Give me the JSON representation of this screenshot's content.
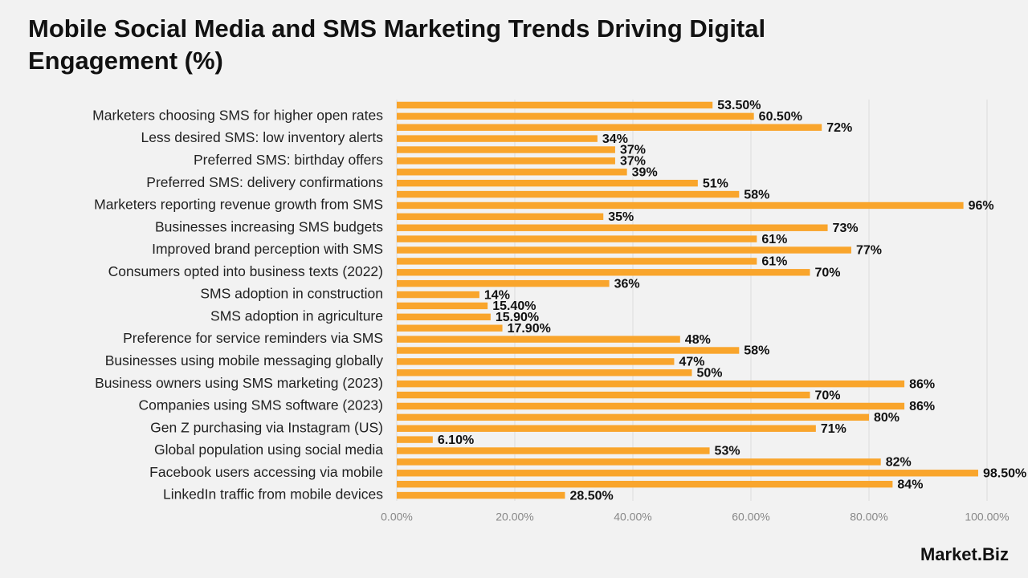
{
  "chart_data": {
    "type": "bar",
    "orientation": "horizontal",
    "title": "Mobile Social Media and SMS Marketing Trends Driving Digital Engagement (%)",
    "categories": [
      null,
      "Marketers choosing SMS for higher open rates",
      null,
      "Less desired SMS: low inventory alerts",
      null,
      "Preferred SMS: birthday offers",
      null,
      "Preferred SMS: delivery confirmations",
      null,
      "Marketers reporting revenue growth from SMS",
      null,
      "Businesses increasing SMS budgets",
      null,
      "Improved brand perception with SMS",
      null,
      "Consumers opted into business texts (2022)",
      null,
      "SMS adoption in construction",
      null,
      "SMS adoption in agriculture",
      null,
      "Preference for service reminders via SMS",
      null,
      "Businesses using mobile messaging globally",
      null,
      "Business owners using SMS marketing (2023)",
      null,
      "Companies using SMS software (2023)",
      null,
      "Gen Z purchasing via Instagram (US)",
      null,
      "Global population using social media",
      null,
      "Facebook users accessing via mobile",
      null,
      "LinkedIn traffic from mobile devices"
    ],
    "values": [
      53.5,
      60.5,
      72,
      34,
      37,
      37,
      39,
      51,
      58,
      96,
      35,
      73,
      61,
      77,
      61,
      70,
      36,
      14,
      15.4,
      15.9,
      17.9,
      48,
      58,
      47,
      50,
      86,
      70,
      86,
      80,
      71,
      6.1,
      53,
      82,
      98.5,
      84,
      28.5
    ],
    "value_labels": [
      "53.50%",
      "60.50%",
      "72%",
      "34%",
      "37%",
      "37%",
      "39%",
      "51%",
      "58%",
      "96%",
      "35%",
      "73%",
      "61%",
      "77%",
      "61%",
      "70%",
      "36%",
      "14%",
      "15.40%",
      "15.90%",
      "17.90%",
      "48%",
      "58%",
      "47%",
      "50%",
      "86%",
      "70%",
      "86%",
      "80%",
      "71%",
      "6.10%",
      "53%",
      "82%",
      "98.50%",
      "84%",
      "28.50%"
    ],
    "color": "#f9a52c",
    "xlim": [
      0,
      100
    ],
    "xticks": [
      {
        "value": 0,
        "label": "0.00%"
      },
      {
        "value": 20,
        "label": "20.00%"
      },
      {
        "value": 40,
        "label": "40.00%"
      },
      {
        "value": 60,
        "label": "60.00%"
      },
      {
        "value": 80,
        "label": "80.00%"
      },
      {
        "value": 100,
        "label": "100.00%"
      }
    ],
    "grid": true,
    "brand": "Market.Biz"
  }
}
